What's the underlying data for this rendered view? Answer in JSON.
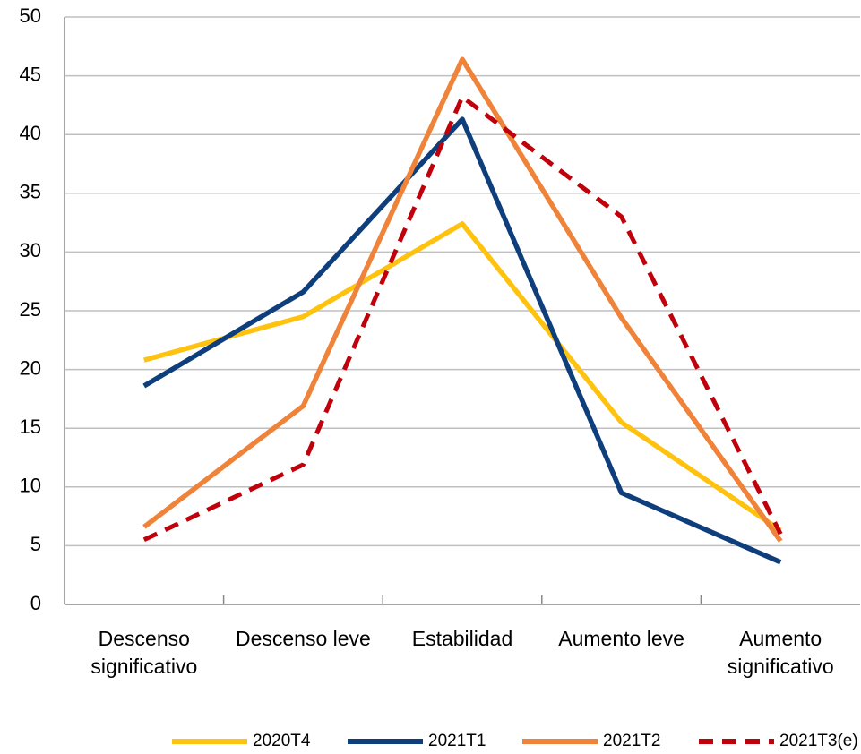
{
  "chart_data": {
    "type": "line",
    "categories": [
      "Descenso significativo",
      "Descenso leve",
      "Estabilidad",
      "Aumento leve",
      "Aumento significativo"
    ],
    "series": [
      {
        "name": "2020T4",
        "color": "#ffc20e",
        "values": [
          20.8,
          24.5,
          32.4,
          15.5,
          6.3
        ]
      },
      {
        "name": "2021T1",
        "color": "#0e3f7c",
        "values": [
          18.6,
          26.6,
          41.3,
          9.5,
          3.6
        ]
      },
      {
        "name": "2021T2",
        "color": "#ee8339",
        "values": [
          6.6,
          16.9,
          46.4,
          24.4,
          5.4
        ]
      },
      {
        "name": "2021T3(e)",
        "color": "#c0000b",
        "values": [
          5.5,
          11.9,
          43.2,
          33.0,
          6.0
        ],
        "dashed": true
      }
    ],
    "ylim": [
      0,
      50
    ],
    "yticks": [
      0,
      5,
      10,
      15,
      20,
      25,
      30,
      35,
      40,
      45,
      50
    ],
    "grid": true,
    "legend": "bottom"
  }
}
